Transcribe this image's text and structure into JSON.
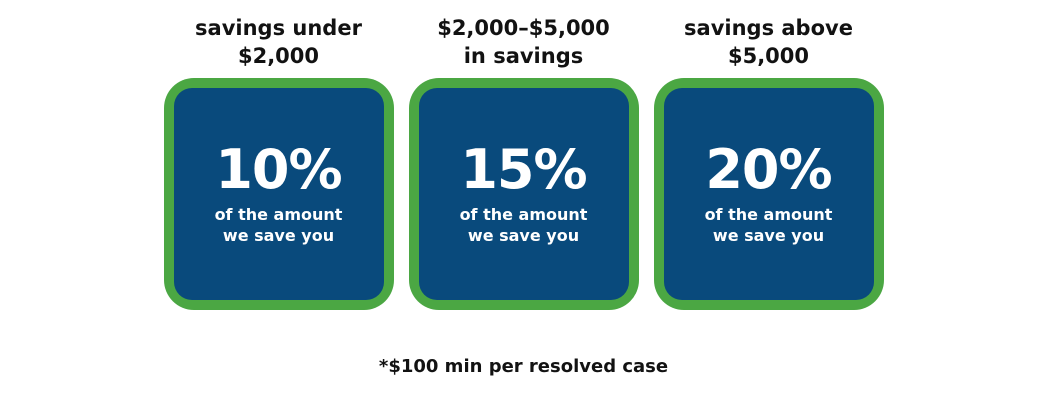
{
  "colors": {
    "green": "#4BA743",
    "blue": "#094A7C",
    "heading_text": "#121212",
    "card_text": "#FFFFFF"
  },
  "tiers": [
    {
      "header_line1": "savings under",
      "header_line2": "$2,000",
      "percent": "10%",
      "caption_line1": "of the amount",
      "caption_line2": "we save you"
    },
    {
      "header_line1": "$2,000–$5,000",
      "header_line2": "in savings",
      "percent": "15%",
      "caption_line1": "of the amount",
      "caption_line2": "we save you"
    },
    {
      "header_line1": "savings above",
      "header_line2": "$5,000",
      "percent": "20%",
      "caption_line1": "of the amount",
      "caption_line2": "we save you"
    }
  ],
  "footnote": "*$100 min per resolved case"
}
